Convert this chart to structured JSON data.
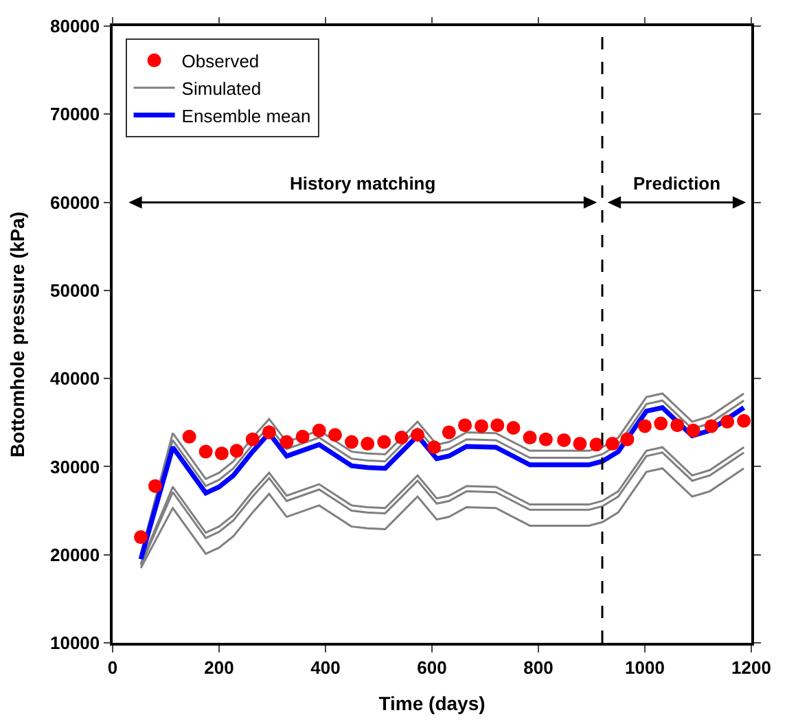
{
  "chart_data": {
    "type": "line",
    "xlabel": "Time (days)",
    "ylabel": "Bottomhole pressure (kPa)",
    "xlim": [
      0,
      1200
    ],
    "xticks": [
      0,
      200,
      400,
      600,
      800,
      1000,
      1200
    ],
    "ylim": [
      10000,
      80000
    ],
    "yticks": [
      10000,
      20000,
      30000,
      40000,
      50000,
      60000,
      70000,
      80000
    ],
    "legend": "top left",
    "line_style": "solid",
    "x": [
      53,
      113,
      175,
      200,
      227,
      263,
      294,
      327,
      388,
      449,
      479,
      512,
      573,
      609,
      632,
      665,
      720,
      784,
      850,
      895,
      920,
      950,
      1003,
      1033,
      1089,
      1122,
      1186
    ],
    "series": [
      {
        "name": "Observed",
        "type": "scatter",
        "marker": "circle",
        "color": "#ff0000",
        "x": [
          53,
          80,
          144,
          175,
          205,
          233,
          263,
          294,
          327,
          357,
          388,
          418,
          449,
          479,
          510,
          543,
          573,
          604,
          632,
          662,
          693,
          723,
          753,
          784,
          814,
          848,
          878,
          909,
          939,
          967,
          1000,
          1030,
          1061,
          1091,
          1125,
          1155,
          1186
        ],
        "values": [
          22000,
          27800,
          33400,
          31700,
          31500,
          31800,
          33100,
          33900,
          32800,
          33400,
          34100,
          33600,
          32800,
          32600,
          32800,
          33300,
          33600,
          32200,
          33900,
          34700,
          34600,
          34700,
          34400,
          33300,
          33100,
          33000,
          32600,
          32500,
          32600,
          33100,
          34600,
          34900,
          34700,
          34100,
          34600,
          35100,
          35200
        ]
      },
      {
        "name": "Simulated",
        "color": "#808080",
        "values": [
          19800,
          33000,
          27800,
          28500,
          29800,
          32500,
          34600,
          32000,
          33300,
          30900,
          30700,
          30600,
          34300,
          31700,
          32000,
          33100,
          33000,
          31000,
          31000,
          31000,
          31400,
          32500,
          37100,
          37500,
          34300,
          34900,
          37500
        ]
      },
      {
        "color": "#808080",
        "values": [
          20100,
          33800,
          28600,
          29300,
          30600,
          33300,
          35400,
          32800,
          34100,
          31700,
          31500,
          31400,
          35100,
          32500,
          32800,
          33900,
          33800,
          31800,
          31800,
          31800,
          32200,
          33300,
          37900,
          38300,
          35100,
          35700,
          38300
        ]
      },
      {
        "color": "#808080",
        "values": [
          19000,
          27700,
          22500,
          23200,
          24500,
          27200,
          29300,
          26700,
          28000,
          25600,
          25400,
          25300,
          29000,
          26400,
          26700,
          27800,
          27700,
          25700,
          25700,
          25700,
          26100,
          27200,
          31800,
          32200,
          29000,
          29600,
          32200
        ]
      },
      {
        "color": "#808080",
        "values": [
          18800,
          27100,
          21900,
          22600,
          23900,
          26600,
          28700,
          26100,
          27400,
          25000,
          24800,
          24700,
          28400,
          25800,
          26100,
          27200,
          27100,
          25100,
          25100,
          25100,
          25500,
          26600,
          31200,
          31600,
          28400,
          29000,
          31600
        ]
      },
      {
        "color": "#808080",
        "values": [
          18500,
          25300,
          20100,
          20800,
          22100,
          24800,
          26900,
          24300,
          25600,
          23200,
          23000,
          22900,
          26600,
          24000,
          24300,
          25400,
          25300,
          23300,
          23300,
          23300,
          23700,
          24800,
          29400,
          29800,
          26600,
          27200,
          29800
        ]
      },
      {
        "name": "Ensemble mean",
        "color": "#0000ff",
        "values": [
          19500,
          32200,
          27000,
          27700,
          29000,
          31700,
          33800,
          31200,
          32500,
          30100,
          29900,
          29800,
          33500,
          30900,
          31200,
          32300,
          32200,
          30200,
          30200,
          30200,
          30600,
          31700,
          36300,
          36700,
          33500,
          34100,
          36700
        ]
      }
    ],
    "ref_lines": [
      {
        "axis": "x",
        "value": 920,
        "color": "#000000",
        "line_style": "dashed"
      }
    ],
    "annotations": [
      "History matching",
      "Prediction"
    ]
  }
}
